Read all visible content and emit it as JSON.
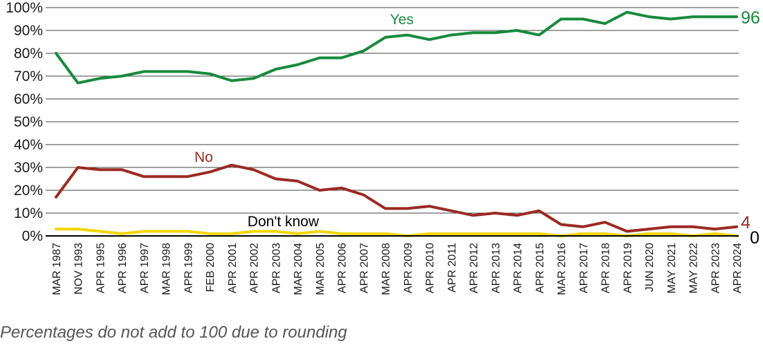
{
  "footnote": "Percentages do not add to 100 due to rounding",
  "chart_data": {
    "type": "line",
    "ylim": [
      0,
      100
    ],
    "yticks": [
      0,
      10,
      20,
      30,
      40,
      50,
      60,
      70,
      80,
      90,
      100
    ],
    "ytick_labels": [
      "0%",
      "10%",
      "20%",
      "30%",
      "40%",
      "50%",
      "60%",
      "70%",
      "80%",
      "90%",
      "100%"
    ],
    "grid": true,
    "categories": [
      "MAR 1987",
      "NOV 1993",
      "APR 1995",
      "APR 1996",
      "APR 1997",
      "MAR 1998",
      "APR 1999",
      "FEB 2000",
      "APR 2001",
      "APR 2002",
      "APR 2003",
      "MAR 2004",
      "MAR 2005",
      "APR 2006",
      "APR 2007",
      "MAR 2008",
      "APR 2009",
      "APR 2010",
      "APR 2011",
      "APR 2012",
      "APR 2013",
      "APR 2014",
      "APR 2015",
      "MAR 2016",
      "APR 2017",
      "APR 2018",
      "APR 2019",
      "JUN 2020",
      "MAY 2021",
      "MAY 2022",
      "APR 2023",
      "APR 2024"
    ],
    "series": [
      {
        "name": "Yes",
        "color": "#178a3c",
        "end_label": "96",
        "values": [
          80,
          67,
          69,
          70,
          72,
          72,
          72,
          71,
          68,
          69,
          73,
          75,
          78,
          78,
          81,
          87,
          88,
          86,
          88,
          89,
          89,
          90,
          88,
          95,
          95,
          93,
          98,
          96,
          95,
          96,
          96,
          96
        ]
      },
      {
        "name": "No",
        "color": "#9b2a22",
        "end_label": "4",
        "values": [
          17,
          30,
          29,
          29,
          26,
          26,
          26,
          28,
          31,
          29,
          25,
          24,
          20,
          21,
          18,
          12,
          12,
          13,
          11,
          9,
          10,
          9,
          11,
          5,
          4,
          6,
          2,
          3,
          4,
          4,
          3,
          4
        ]
      },
      {
        "name": "Don't know",
        "color": "#f2d600",
        "end_label": "0",
        "values": [
          3,
          3,
          2,
          1,
          2,
          2,
          2,
          1,
          1,
          2,
          2,
          1,
          2,
          1,
          1,
          1,
          0,
          1,
          1,
          1,
          1,
          1,
          1,
          0,
          1,
          1,
          0,
          1,
          1,
          0,
          1,
          0
        ]
      }
    ]
  }
}
